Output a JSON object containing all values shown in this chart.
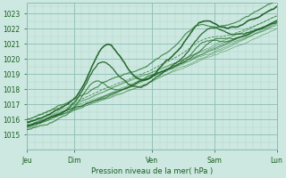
{
  "title": "Pression niveau de la mer( hPa )",
  "ylabel_ticks": [
    1015,
    1016,
    1017,
    1018,
    1019,
    1020,
    1021,
    1022,
    1023
  ],
  "ylim": [
    1014.3,
    1023.7
  ],
  "xlim": [
    0,
    96
  ],
  "xtick_positions": [
    0,
    18,
    48,
    72,
    96
  ],
  "xtick_labels": [
    "Jeu",
    "Dim",
    "Ven",
    "Sam",
    "Lun"
  ],
  "bg_color": "#cce8e0",
  "grid_color_major": "#8bbdb4",
  "grid_color_minor": "#aad0c8",
  "line_color_main": "#1a5c20",
  "line_color_thin": "#2d7a35",
  "fig_width": 3.2,
  "fig_height": 2.0,
  "dpi": 100
}
